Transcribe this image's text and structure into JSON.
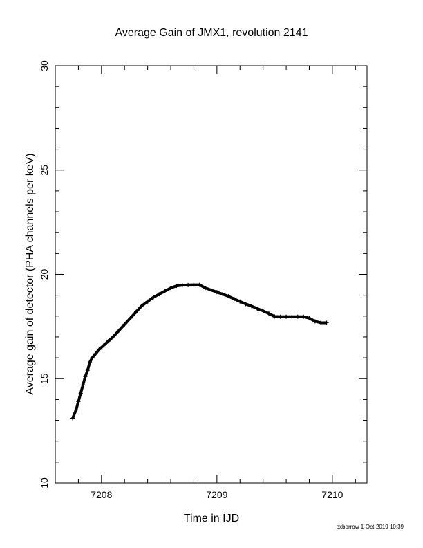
{
  "chart_data": {
    "type": "scatter",
    "title": "Average Gain of JMX1, revolution 2141",
    "xlabel": "Time in IJD",
    "ylabel": "Average gain of detector (PHA channels per keV)",
    "xlim": [
      7207.6,
      7210.3
    ],
    "ylim": [
      10,
      30
    ],
    "xticks": [
      7208,
      7209,
      7210
    ],
    "yticks": [
      10,
      15,
      20,
      25,
      30
    ],
    "grid": false,
    "marker": "+",
    "color": "#000000",
    "x": [
      7207.75,
      7207.78,
      7207.8,
      7207.82,
      7207.84,
      7207.86,
      7207.88,
      7207.9,
      7207.92,
      7207.95,
      7207.98,
      7208.02,
      7208.06,
      7208.1,
      7208.15,
      7208.2,
      7208.25,
      7208.3,
      7208.35,
      7208.4,
      7208.45,
      7208.5,
      7208.55,
      7208.6,
      7208.65,
      7208.7,
      7208.75,
      7208.8,
      7208.85,
      7208.9,
      7208.95,
      7209.0,
      7209.05,
      7209.1,
      7209.15,
      7209.2,
      7209.25,
      7209.3,
      7209.35,
      7209.4,
      7209.45,
      7209.5,
      7209.55,
      7209.6,
      7209.65,
      7209.7,
      7209.75,
      7209.8,
      7209.85,
      7209.9,
      7209.95
    ],
    "y": [
      13.1,
      13.5,
      13.9,
      14.3,
      14.7,
      15.1,
      15.4,
      15.8,
      16.0,
      16.2,
      16.4,
      16.6,
      16.8,
      17.0,
      17.3,
      17.6,
      17.9,
      18.2,
      18.5,
      18.7,
      18.9,
      19.05,
      19.2,
      19.35,
      19.45,
      19.48,
      19.49,
      19.5,
      19.5,
      19.35,
      19.25,
      19.15,
      19.05,
      18.95,
      18.82,
      18.7,
      18.58,
      18.48,
      18.36,
      18.25,
      18.12,
      17.98,
      17.97,
      17.97,
      17.97,
      17.97,
      17.97,
      17.9,
      17.75,
      17.68,
      17.68
    ]
  },
  "footer": "oxborrow 1-Oct-2019 10:39"
}
